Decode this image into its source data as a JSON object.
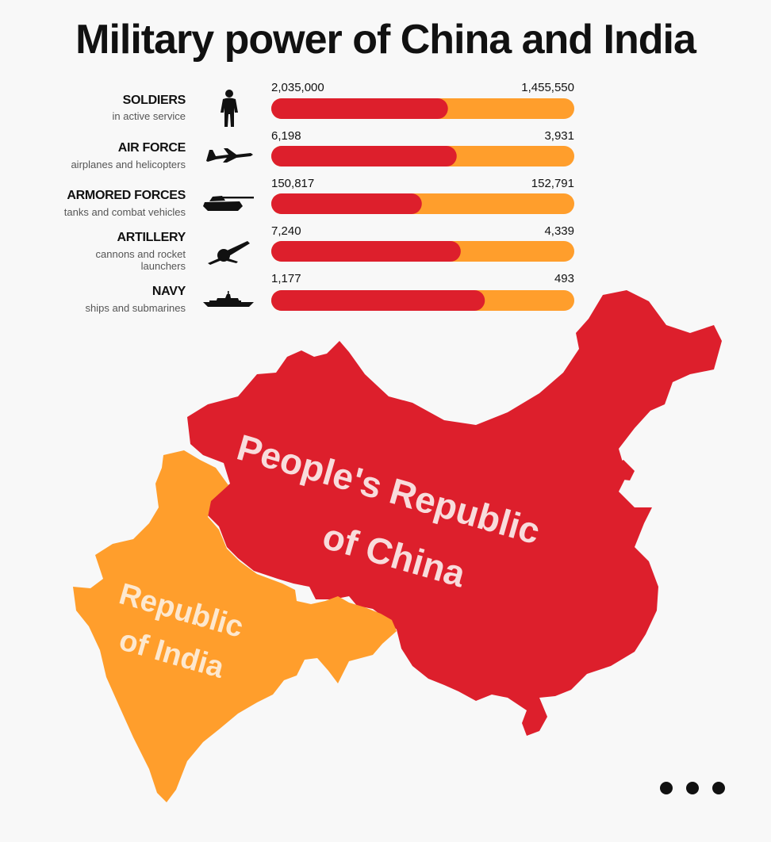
{
  "title": "Military power of China and India",
  "colors": {
    "china": "#dd1f2c",
    "india": "#ff9e2c"
  },
  "chart_data": {
    "type": "bar",
    "orientation": "horizontal-stacked-proportion",
    "series": [
      {
        "name": "People's Republic of China",
        "values": [
          2035000,
          6198,
          150817,
          7240,
          1177
        ]
      },
      {
        "name": "Republic of India",
        "values": [
          1455550,
          3931,
          152791,
          4339,
          493
        ]
      }
    ],
    "categories": [
      {
        "label": "SOLDIERS",
        "sub": "in active service",
        "icon": "soldier-icon",
        "china": "2,035,000",
        "india": "1,455,550",
        "china_value": 2035000,
        "india_value": 1455550
      },
      {
        "label": "AIR FORCE",
        "sub": "airplanes and helicopters",
        "icon": "jet-icon",
        "china": "6,198",
        "india": "3,931",
        "china_value": 6198,
        "india_value": 3931
      },
      {
        "label": "ARMORED FORCES",
        "sub": "tanks and combat vehicles",
        "icon": "tank-icon",
        "china": "150,817",
        "india": "152,791",
        "china_value": 150817,
        "india_value": 152791
      },
      {
        "label": "ARTILLERY",
        "sub": "cannons and rocket launchers",
        "icon": "cannon-icon",
        "china": "7,240",
        "india": "4,339",
        "china_value": 7240,
        "india_value": 4339
      },
      {
        "label": "NAVY",
        "sub": "ships and submarines",
        "icon": "ship-icon",
        "china": "1,177",
        "india": "493",
        "china_value": 1177,
        "india_value": 493
      }
    ]
  },
  "map": {
    "china_label_line1": "People's Republic",
    "china_label_line2": "of China",
    "india_label_line1": "Republic",
    "india_label_line2": "of India"
  }
}
